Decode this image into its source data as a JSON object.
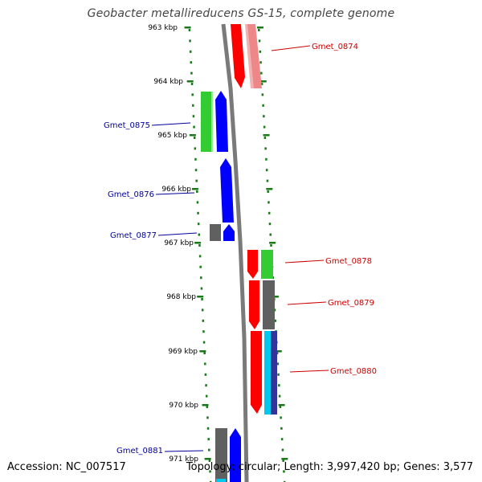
{
  "title": "Geobacter metallireducens GS-15, complete genome",
  "footer": {
    "accession": "Accession: NC_007517",
    "topology": "Topology: circular; Length: 3,997,420 bp; Genes: 3,577"
  },
  "colors": {
    "forward_label": "#cc0000",
    "reverse_label": "#000099",
    "tick": "#1a7a1a",
    "backbone": "#7a7a7a",
    "red": "#ff0000",
    "blue": "#0000ff",
    "green": "#33cc33",
    "gray": "#606060",
    "cyan": "#00c8ee",
    "indigo": "#333399",
    "pink": "#ee8888"
  },
  "kbp_labels": [
    "963 kbp",
    "964 kbp",
    "965 kbp",
    "966 kbp",
    "967 kbp",
    "968 kbp",
    "969 kbp",
    "970 kbp",
    "971 kbp"
  ],
  "gene_labels": {
    "forward": [
      "Gmet_0874",
      "Gmet_0878",
      "Gmet_0879",
      "Gmet_0880"
    ],
    "reverse": [
      "Gmet_0875",
      "Gmet_0876",
      "Gmet_0877",
      "Gmet_0881"
    ]
  }
}
